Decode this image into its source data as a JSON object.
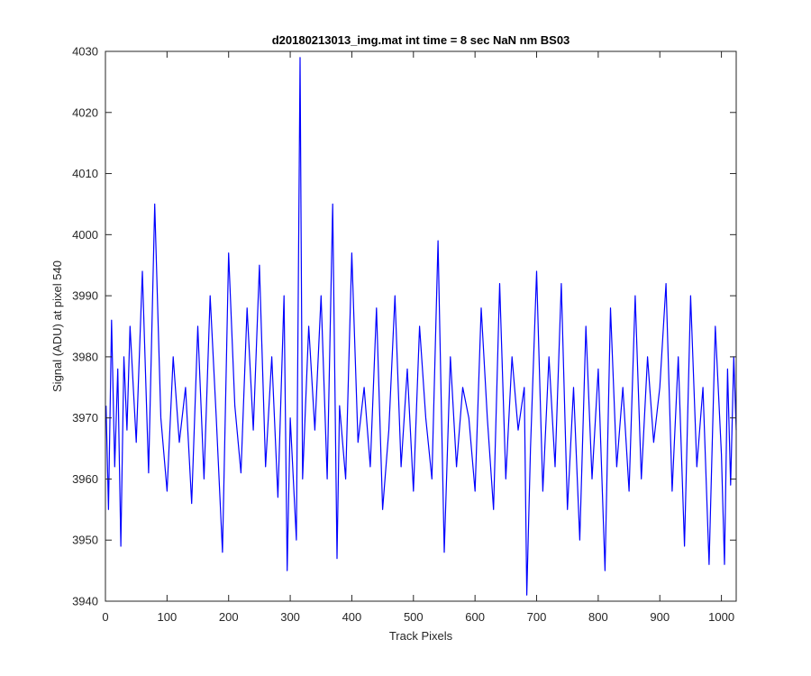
{
  "chart_data": {
    "type": "line",
    "title": "d20180213013_img.mat int time = 8 sec  NaN nm BS03",
    "xlabel": "Track Pixels",
    "ylabel": "Signal (ADU) at pixel 540",
    "xlim": [
      0,
      1024
    ],
    "ylim": [
      3940,
      4030
    ],
    "xticks": [
      0,
      100,
      200,
      300,
      400,
      500,
      600,
      700,
      800,
      900,
      1000
    ],
    "yticks": [
      3940,
      3950,
      3960,
      3970,
      3980,
      3990,
      4000,
      4010,
      4020,
      4030
    ],
    "grid": false,
    "legend": "none",
    "series": [
      {
        "color": "#0000ff",
        "x": [
          1,
          5,
          10,
          15,
          20,
          25,
          30,
          35,
          40,
          50,
          60,
          70,
          80,
          90,
          100,
          110,
          120,
          130,
          140,
          150,
          160,
          170,
          180,
          190,
          200,
          210,
          220,
          230,
          240,
          250,
          260,
          270,
          280,
          290,
          295,
          300,
          310,
          316,
          320,
          330,
          340,
          350,
          360,
          369,
          376,
          380,
          390,
          400,
          410,
          420,
          430,
          440,
          450,
          460,
          470,
          480,
          490,
          500,
          510,
          520,
          530,
          540,
          550,
          560,
          570,
          580,
          590,
          600,
          610,
          620,
          630,
          640,
          650,
          660,
          670,
          680,
          684,
          690,
          700,
          710,
          720,
          730,
          740,
          750,
          760,
          770,
          780,
          790,
          800,
          811,
          820,
          830,
          840,
          850,
          860,
          870,
          880,
          890,
          900,
          910,
          920,
          930,
          940,
          950,
          960,
          970,
          980,
          990,
          1000,
          1005,
          1010,
          1015,
          1020,
          1024
        ],
        "y": [
          3972,
          3955,
          3986,
          3962,
          3978,
          3949,
          3980,
          3968,
          3985,
          3966,
          3994,
          3961,
          4005,
          3970,
          3958,
          3980,
          3966,
          3975,
          3956,
          3985,
          3960,
          3990,
          3970,
          3948,
          3997,
          3972,
          3961,
          3988,
          3968,
          3995,
          3962,
          3980,
          3957,
          3990,
          3945,
          3970,
          3950,
          4029,
          3960,
          3985,
          3968,
          3990,
          3960,
          4005,
          3947,
          3972,
          3960,
          3997,
          3966,
          3975,
          3962,
          3988,
          3955,
          3968,
          3990,
          3962,
          3978,
          3958,
          3985,
          3970,
          3960,
          3999,
          3948,
          3980,
          3962,
          3975,
          3970,
          3958,
          3988,
          3970,
          3955,
          3992,
          3960,
          3980,
          3968,
          3975,
          3941,
          3965,
          3994,
          3958,
          3980,
          3962,
          3992,
          3955,
          3975,
          3950,
          3985,
          3960,
          3978,
          3945,
          3988,
          3962,
          3975,
          3958,
          3990,
          3960,
          3980,
          3966,
          3975,
          3992,
          3958,
          3980,
          3949,
          3990,
          3962,
          3975,
          3946,
          3985,
          3964,
          3946,
          3978,
          3959,
          3980,
          3968
        ]
      }
    ]
  }
}
